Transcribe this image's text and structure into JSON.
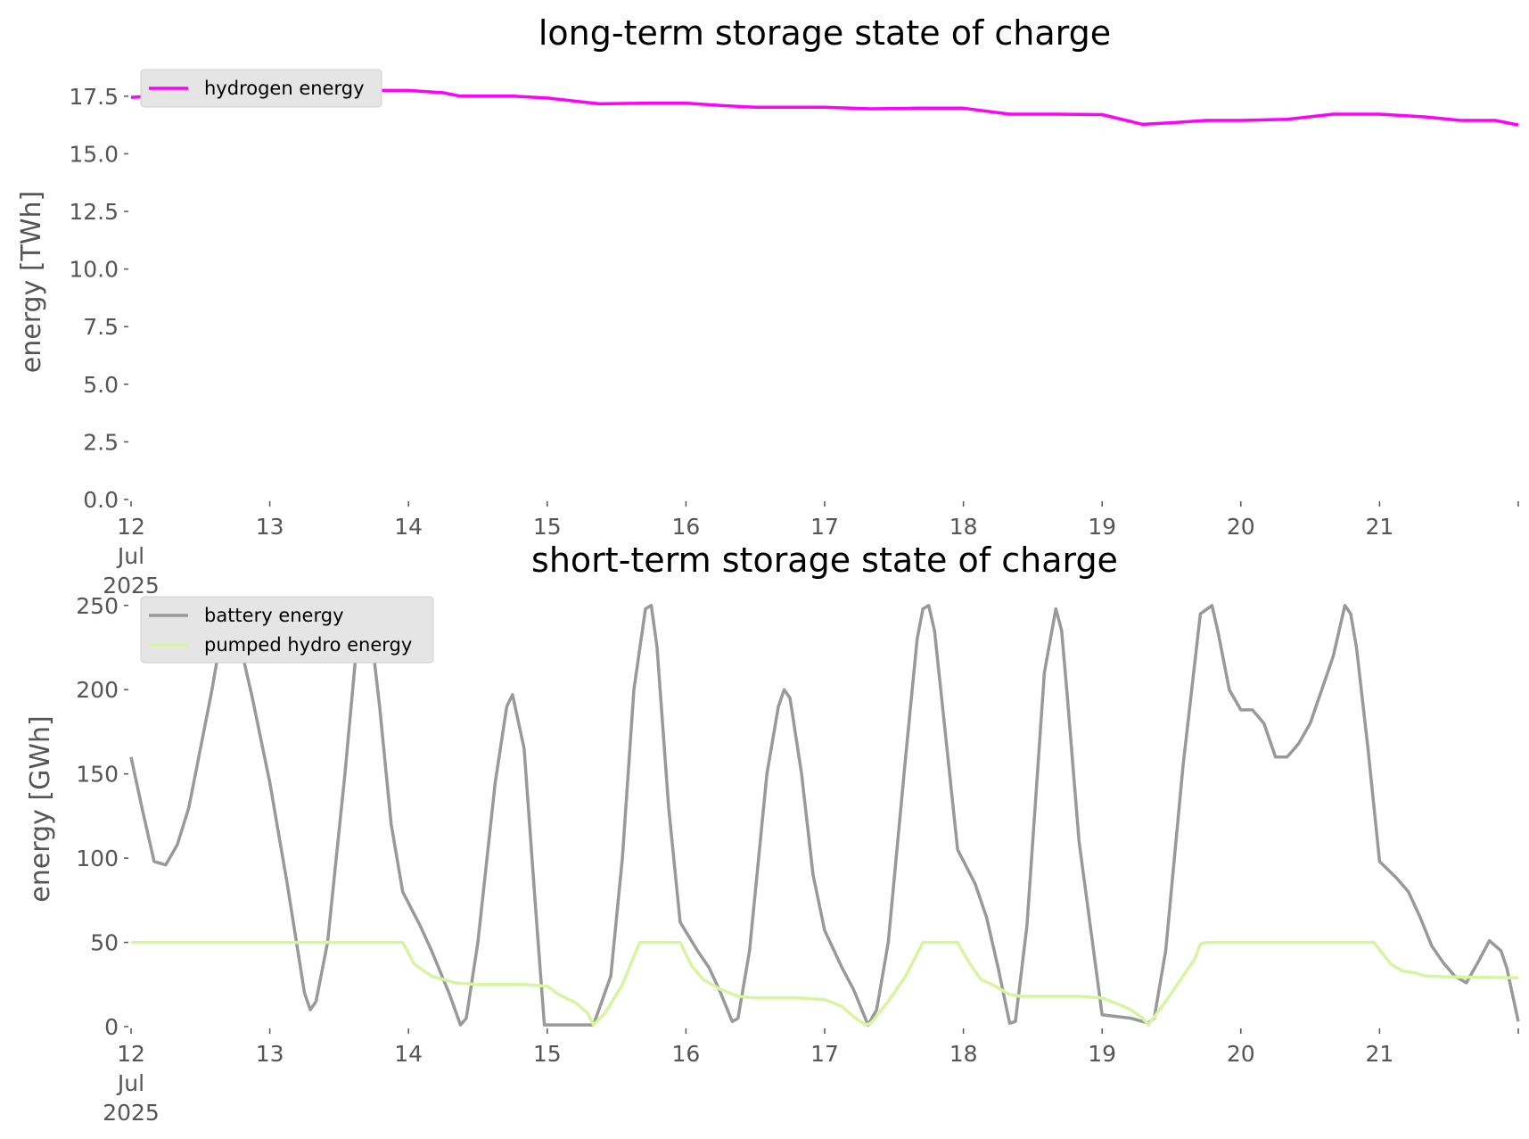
{
  "chart_data": [
    {
      "type": "line",
      "title": "long-term storage state of charge",
      "xlabel": "",
      "ylabel": "energy [TWh]",
      "ylim": [
        0,
        18.5
      ],
      "xlim": [
        "2025-07-12",
        "2025-07-22"
      ],
      "yticks": [
        "0.0",
        "2.5",
        "5.0",
        "7.5",
        "10.0",
        "12.5",
        "15.0",
        "17.5"
      ],
      "xtick_labels": [
        [
          "12",
          "Jul",
          "2025"
        ],
        [
          "13"
        ],
        [
          "14"
        ],
        [
          "15"
        ],
        [
          "16"
        ],
        [
          "17"
        ],
        [
          "18"
        ],
        [
          "19"
        ],
        [
          "20"
        ],
        [
          "21"
        ]
      ],
      "grid": false,
      "legend_placement": "top-left",
      "series": [
        {
          "name": "hydrogen energy",
          "color": "#ff00ff",
          "points": [
            [
              "2025-07-12T00:00",
              17.45
            ],
            [
              "2025-07-12T08:00",
              17.55
            ],
            [
              "2025-07-12T16:00",
              17.65
            ],
            [
              "2025-07-13T00:00",
              17.7
            ],
            [
              "2025-07-13T12:00",
              17.75
            ],
            [
              "2025-07-14T00:00",
              17.75
            ],
            [
              "2025-07-14T06:00",
              17.65
            ],
            [
              "2025-07-14T09:00",
              17.5
            ],
            [
              "2025-07-14T18:00",
              17.5
            ],
            [
              "2025-07-15T00:00",
              17.42
            ],
            [
              "2025-07-15T06:00",
              17.25
            ],
            [
              "2025-07-15T09:00",
              17.17
            ],
            [
              "2025-07-15T18:00",
              17.2
            ],
            [
              "2025-07-16T00:00",
              17.2
            ],
            [
              "2025-07-16T06:00",
              17.1
            ],
            [
              "2025-07-16T12:00",
              17.02
            ],
            [
              "2025-07-16T18:00",
              17.02
            ],
            [
              "2025-07-17T00:00",
              17.02
            ],
            [
              "2025-07-17T08:00",
              16.95
            ],
            [
              "2025-07-17T16:00",
              16.98
            ],
            [
              "2025-07-18T00:00",
              16.98
            ],
            [
              "2025-07-18T08:00",
              16.72
            ],
            [
              "2025-07-18T16:00",
              16.72
            ],
            [
              "2025-07-19T00:00",
              16.7
            ],
            [
              "2025-07-19T07:00",
              16.28
            ],
            [
              "2025-07-19T12:00",
              16.35
            ],
            [
              "2025-07-19T18:00",
              16.45
            ],
            [
              "2025-07-20T00:00",
              16.45
            ],
            [
              "2025-07-20T08:00",
              16.5
            ],
            [
              "2025-07-20T16:00",
              16.72
            ],
            [
              "2025-07-21T00:00",
              16.72
            ],
            [
              "2025-07-21T08:00",
              16.6
            ],
            [
              "2025-07-21T14:00",
              16.45
            ],
            [
              "2025-07-21T20:00",
              16.45
            ],
            [
              "2025-07-22T00:00",
              16.25
            ]
          ]
        }
      ]
    },
    {
      "type": "line",
      "title": "short-term storage state of charge",
      "xlabel": "",
      "ylabel": "energy [GWh]",
      "ylim": [
        0,
        252
      ],
      "xlim": [
        "2025-07-12",
        "2025-07-22"
      ],
      "yticks": [
        "0",
        "50",
        "100",
        "150",
        "200",
        "250"
      ],
      "xtick_labels": [
        [
          "12",
          "Jul",
          "2025"
        ],
        [
          "13"
        ],
        [
          "14"
        ],
        [
          "15"
        ],
        [
          "16"
        ],
        [
          "17"
        ],
        [
          "18"
        ],
        [
          "19"
        ],
        [
          "20"
        ],
        [
          "21"
        ]
      ],
      "grid": false,
      "legend_placement": "top-left",
      "series": [
        {
          "name": "battery energy",
          "color": "#999999",
          "points": [
            [
              "2025-07-12T00:00",
              160
            ],
            [
              "2025-07-12T02:00",
              128
            ],
            [
              "2025-07-12T04:00",
              98
            ],
            [
              "2025-07-12T06:00",
              96
            ],
            [
              "2025-07-12T08:00",
              108
            ],
            [
              "2025-07-12T10:00",
              130
            ],
            [
              "2025-07-12T12:00",
              165
            ],
            [
              "2025-07-12T14:00",
              200
            ],
            [
              "2025-07-12T16:00",
              240
            ],
            [
              "2025-07-12T17:00",
              250
            ],
            [
              "2025-07-12T18:00",
              240
            ],
            [
              "2025-07-12T21:00",
              195
            ],
            [
              "2025-07-13T00:00",
              145
            ],
            [
              "2025-07-13T03:00",
              85
            ],
            [
              "2025-07-13T06:00",
              20
            ],
            [
              "2025-07-13T07:00",
              10
            ],
            [
              "2025-07-13T08:00",
              15
            ],
            [
              "2025-07-13T10:00",
              50
            ],
            [
              "2025-07-13T13:00",
              150
            ],
            [
              "2025-07-13T15:00",
              225
            ],
            [
              "2025-07-13T17:00",
              250
            ],
            [
              "2025-07-13T19:00",
              190
            ],
            [
              "2025-07-13T21:00",
              120
            ],
            [
              "2025-07-13T23:00",
              80
            ],
            [
              "2025-07-14T02:00",
              60
            ],
            [
              "2025-07-14T04:00",
              45
            ],
            [
              "2025-07-14T07:00",
              20
            ],
            [
              "2025-07-14T09:00",
              1
            ],
            [
              "2025-07-14T10:00",
              5
            ],
            [
              "2025-07-14T12:00",
              50
            ],
            [
              "2025-07-14T15:00",
              145
            ],
            [
              "2025-07-14T17:00",
              190
            ],
            [
              "2025-07-14T18:00",
              197
            ],
            [
              "2025-07-14T20:00",
              165
            ],
            [
              "2025-07-14T22:00",
              70
            ],
            [
              "2025-07-14T23:30",
              1
            ],
            [
              "2025-07-15T08:00",
              1
            ],
            [
              "2025-07-15T11:00",
              30
            ],
            [
              "2025-07-15T13:00",
              100
            ],
            [
              "2025-07-15T15:00",
              200
            ],
            [
              "2025-07-15T17:00",
              248
            ],
            [
              "2025-07-15T18:00",
              250
            ],
            [
              "2025-07-15T19:00",
              225
            ],
            [
              "2025-07-15T21:00",
              130
            ],
            [
              "2025-07-15T23:00",
              62
            ],
            [
              "2025-07-16T02:00",
              45
            ],
            [
              "2025-07-16T04:00",
              35
            ],
            [
              "2025-07-16T06:00",
              20
            ],
            [
              "2025-07-16T08:00",
              3
            ],
            [
              "2025-07-16T09:00",
              5
            ],
            [
              "2025-07-16T11:00",
              45
            ],
            [
              "2025-07-16T14:00",
              150
            ],
            [
              "2025-07-16T16:00",
              190
            ],
            [
              "2025-07-16T17:00",
              200
            ],
            [
              "2025-07-16T18:00",
              195
            ],
            [
              "2025-07-16T20:00",
              150
            ],
            [
              "2025-07-16T22:00",
              90
            ],
            [
              "2025-07-17T00:00",
              57
            ],
            [
              "2025-07-17T03:00",
              35
            ],
            [
              "2025-07-17T05:00",
              22
            ],
            [
              "2025-07-17T07:30",
              1
            ],
            [
              "2025-07-17T09:00",
              10
            ],
            [
              "2025-07-17T11:00",
              50
            ],
            [
              "2025-07-17T14:00",
              160
            ],
            [
              "2025-07-17T16:00",
              230
            ],
            [
              "2025-07-17T17:00",
              248
            ],
            [
              "2025-07-17T18:00",
              250
            ],
            [
              "2025-07-17T19:00",
              235
            ],
            [
              "2025-07-17T21:00",
              170
            ],
            [
              "2025-07-17T23:00",
              105
            ],
            [
              "2025-07-18T02:00",
              85
            ],
            [
              "2025-07-18T04:00",
              65
            ],
            [
              "2025-07-18T06:00",
              35
            ],
            [
              "2025-07-18T08:00",
              2
            ],
            [
              "2025-07-18T09:00",
              3
            ],
            [
              "2025-07-18T11:00",
              60
            ],
            [
              "2025-07-18T14:00",
              210
            ],
            [
              "2025-07-18T16:00",
              248
            ],
            [
              "2025-07-18T17:00",
              235
            ],
            [
              "2025-07-18T18:00",
              195
            ],
            [
              "2025-07-18T20:00",
              110
            ],
            [
              "2025-07-19T00:00",
              7
            ],
            [
              "2025-07-19T05:00",
              5
            ],
            [
              "2025-07-19T08:00",
              2
            ],
            [
              "2025-07-19T09:00",
              5
            ],
            [
              "2025-07-19T11:00",
              45
            ],
            [
              "2025-07-19T14:00",
              155
            ],
            [
              "2025-07-19T17:00",
              245
            ],
            [
              "2025-07-19T19:00",
              250
            ],
            [
              "2025-07-19T20:00",
              235
            ],
            [
              "2025-07-19T22:00",
              200
            ],
            [
              "2025-07-20T00:00",
              188
            ],
            [
              "2025-07-20T02:00",
              188
            ],
            [
              "2025-07-20T04:00",
              180
            ],
            [
              "2025-07-20T06:00",
              160
            ],
            [
              "2025-07-20T08:00",
              160
            ],
            [
              "2025-07-20T10:00",
              168
            ],
            [
              "2025-07-20T12:00",
              180
            ],
            [
              "2025-07-20T14:00",
              200
            ],
            [
              "2025-07-20T16:00",
              220
            ],
            [
              "2025-07-20T18:00",
              250
            ],
            [
              "2025-07-20T19:00",
              245
            ],
            [
              "2025-07-20T20:00",
              225
            ],
            [
              "2025-07-20T22:00",
              165
            ],
            [
              "2025-07-21T00:00",
              98
            ],
            [
              "2025-07-21T03:00",
              88
            ],
            [
              "2025-07-21T05:00",
              80
            ],
            [
              "2025-07-21T07:00",
              65
            ],
            [
              "2025-07-21T09:00",
              48
            ],
            [
              "2025-07-21T11:00",
              38
            ],
            [
              "2025-07-21T13:00",
              30
            ],
            [
              "2025-07-21T15:00",
              26
            ],
            [
              "2025-07-21T17:00",
              38
            ],
            [
              "2025-07-21T19:00",
              51
            ],
            [
              "2025-07-21T21:00",
              45
            ],
            [
              "2025-07-21T22:00",
              35
            ],
            [
              "2025-07-22T00:00",
              3
            ]
          ]
        },
        {
          "name": "pumped hydro energy",
          "color": "#d5f5a0",
          "points": [
            [
              "2025-07-12T00:00",
              50
            ],
            [
              "2025-07-13T23:00",
              50
            ],
            [
              "2025-07-14T01:00",
              37
            ],
            [
              "2025-07-14T04:00",
              30
            ],
            [
              "2025-07-14T08:00",
              26
            ],
            [
              "2025-07-14T12:00",
              25
            ],
            [
              "2025-07-14T20:00",
              25
            ],
            [
              "2025-07-15T00:00",
              24
            ],
            [
              "2025-07-15T02:00",
              19
            ],
            [
              "2025-07-15T05:00",
              14
            ],
            [
              "2025-07-15T07:00",
              8
            ],
            [
              "2025-07-15T08:00",
              1
            ],
            [
              "2025-07-15T10:00",
              8
            ],
            [
              "2025-07-15T13:00",
              25
            ],
            [
              "2025-07-15T16:00",
              50
            ],
            [
              "2025-07-15T23:00",
              50
            ],
            [
              "2025-07-16T01:00",
              36
            ],
            [
              "2025-07-16T03:00",
              28
            ],
            [
              "2025-07-16T06:00",
              22
            ],
            [
              "2025-07-16T09:00",
              18
            ],
            [
              "2025-07-16T12:00",
              17
            ],
            [
              "2025-07-16T20:00",
              17
            ],
            [
              "2025-07-17T00:00",
              16
            ],
            [
              "2025-07-17T03:00",
              12
            ],
            [
              "2025-07-17T05:00",
              6
            ],
            [
              "2025-07-17T07:00",
              1
            ],
            [
              "2025-07-17T08:00",
              2
            ],
            [
              "2025-07-17T11:00",
              15
            ],
            [
              "2025-07-17T14:00",
              30
            ],
            [
              "2025-07-17T17:00",
              50
            ],
            [
              "2025-07-17T23:00",
              50
            ],
            [
              "2025-07-18T01:00",
              38
            ],
            [
              "2025-07-18T03:00",
              28
            ],
            [
              "2025-07-18T05:00",
              25
            ],
            [
              "2025-07-18T08:00",
              19
            ],
            [
              "2025-07-18T10:00",
              18
            ],
            [
              "2025-07-18T20:00",
              18
            ],
            [
              "2025-07-19T00:00",
              17
            ],
            [
              "2025-07-19T03:00",
              13
            ],
            [
              "2025-07-19T05:00",
              10
            ],
            [
              "2025-07-19T07:00",
              5
            ],
            [
              "2025-07-19T08:00",
              1
            ],
            [
              "2025-07-19T11:00",
              15
            ],
            [
              "2025-07-19T14:00",
              30
            ],
            [
              "2025-07-19T16:00",
              40
            ],
            [
              "2025-07-19T17:00",
              49
            ],
            [
              "2025-07-19T18:00",
              50
            ],
            [
              "2025-07-20T23:00",
              50
            ],
            [
              "2025-07-21T02:00",
              37
            ],
            [
              "2025-07-21T04:00",
              33
            ],
            [
              "2025-07-21T06:00",
              32
            ],
            [
              "2025-07-21T08:00",
              30
            ],
            [
              "2025-07-21T12:00",
              29.5
            ],
            [
              "2025-07-22T00:00",
              29
            ]
          ]
        }
      ]
    }
  ]
}
